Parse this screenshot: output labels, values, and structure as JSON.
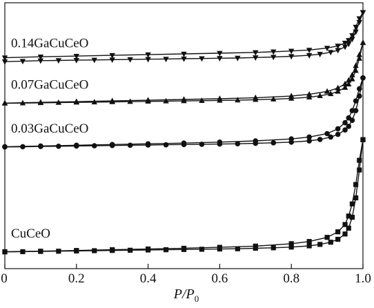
{
  "chart_data": {
    "type": "line",
    "xlabel": "P/P0",
    "xlabel_main": "P/P",
    "xlabel_sub": "0",
    "ylabel": "",
    "xlim": [
      0,
      1.0
    ],
    "ylim": [
      0,
      10
    ],
    "x_ticks": [
      "0",
      "0.2",
      "0.4",
      "0.6",
      "0.8",
      "1.0"
    ],
    "x_tick_values": [
      0,
      0.2,
      0.4,
      0.6,
      0.8,
      1.0
    ],
    "y_ticks_shown": false,
    "grid": false,
    "legend": "none (series labeled inline above each curve)",
    "color": "#111111",
    "series": [
      {
        "name": "0.14GaCuCeO",
        "marker": "triangle-down",
        "adsorption": [
          [
            0.0,
            7.97
          ],
          [
            0.05,
            7.99
          ],
          [
            0.1,
            8.01
          ],
          [
            0.15,
            8.02
          ],
          [
            0.2,
            8.03
          ],
          [
            0.25,
            8.04
          ],
          [
            0.3,
            8.05
          ],
          [
            0.35,
            8.06
          ],
          [
            0.4,
            8.07
          ],
          [
            0.45,
            8.08
          ],
          [
            0.5,
            8.09
          ],
          [
            0.55,
            8.1
          ],
          [
            0.6,
            8.11
          ],
          [
            0.65,
            8.12
          ],
          [
            0.7,
            8.14
          ],
          [
            0.75,
            8.16
          ],
          [
            0.8,
            8.19
          ],
          [
            0.85,
            8.23
          ],
          [
            0.88,
            8.28
          ],
          [
            0.91,
            8.36
          ],
          [
            0.93,
            8.44
          ],
          [
            0.95,
            8.58
          ],
          [
            0.96,
            8.7
          ],
          [
            0.97,
            8.9
          ],
          [
            0.98,
            9.2
          ],
          [
            0.99,
            9.6
          ],
          [
            1.0,
            10.0
          ]
        ],
        "desorption": [
          [
            1.0,
            10.0
          ],
          [
            0.99,
            9.75
          ],
          [
            0.98,
            9.4
          ],
          [
            0.97,
            9.05
          ],
          [
            0.96,
            8.85
          ],
          [
            0.95,
            8.74
          ],
          [
            0.93,
            8.62
          ],
          [
            0.9,
            8.53
          ],
          [
            0.85,
            8.45
          ],
          [
            0.8,
            8.41
          ],
          [
            0.75,
            8.38
          ],
          [
            0.7,
            8.35
          ],
          [
            0.6,
            8.32
          ],
          [
            0.5,
            8.29
          ],
          [
            0.4,
            8.26
          ],
          [
            0.3,
            8.23
          ],
          [
            0.2,
            8.2
          ],
          [
            0.1,
            8.17
          ],
          [
            0.0,
            8.13
          ]
        ]
      },
      {
        "name": "0.07GaCuCeO",
        "marker": "triangle-up",
        "adsorption": [
          [
            0.0,
            6.25
          ],
          [
            0.05,
            6.26
          ],
          [
            0.1,
            6.27
          ],
          [
            0.15,
            6.28
          ],
          [
            0.2,
            6.29
          ],
          [
            0.25,
            6.3
          ],
          [
            0.3,
            6.31
          ],
          [
            0.35,
            6.32
          ],
          [
            0.4,
            6.33
          ],
          [
            0.45,
            6.34
          ],
          [
            0.5,
            6.35
          ],
          [
            0.55,
            6.36
          ],
          [
            0.6,
            6.37
          ],
          [
            0.65,
            6.38
          ],
          [
            0.7,
            6.4
          ],
          [
            0.75,
            6.42
          ],
          [
            0.8,
            6.45
          ],
          [
            0.85,
            6.5
          ],
          [
            0.88,
            6.56
          ],
          [
            0.91,
            6.64
          ],
          [
            0.93,
            6.74
          ],
          [
            0.95,
            6.9
          ],
          [
            0.96,
            7.04
          ],
          [
            0.97,
            7.25
          ],
          [
            0.98,
            7.6
          ],
          [
            0.99,
            8.1
          ],
          [
            1.0,
            8.75
          ]
        ],
        "desorption": [
          [
            1.0,
            8.75
          ],
          [
            0.99,
            8.25
          ],
          [
            0.98,
            7.8
          ],
          [
            0.97,
            7.42
          ],
          [
            0.96,
            7.2
          ],
          [
            0.95,
            7.05
          ],
          [
            0.93,
            6.88
          ],
          [
            0.9,
            6.74
          ],
          [
            0.85,
            6.62
          ],
          [
            0.8,
            6.55
          ],
          [
            0.7,
            6.48
          ],
          [
            0.6,
            6.44
          ],
          [
            0.5,
            6.41
          ],
          [
            0.4,
            6.38
          ],
          [
            0.3,
            6.35
          ],
          [
            0.2,
            6.32
          ],
          [
            0.1,
            6.29
          ],
          [
            0.0,
            6.26
          ]
        ]
      },
      {
        "name": "0.03GaCuCeO",
        "marker": "circle",
        "adsorption": [
          [
            0.0,
            4.45
          ],
          [
            0.05,
            4.46
          ],
          [
            0.1,
            4.47
          ],
          [
            0.15,
            4.48
          ],
          [
            0.2,
            4.49
          ],
          [
            0.25,
            4.5
          ],
          [
            0.3,
            4.51
          ],
          [
            0.35,
            4.52
          ],
          [
            0.4,
            4.53
          ],
          [
            0.45,
            4.54
          ],
          [
            0.5,
            4.55
          ],
          [
            0.55,
            4.56
          ],
          [
            0.6,
            4.57
          ],
          [
            0.65,
            4.58
          ],
          [
            0.7,
            4.6
          ],
          [
            0.75,
            4.62
          ],
          [
            0.8,
            4.65
          ],
          [
            0.85,
            4.7
          ],
          [
            0.88,
            4.76
          ],
          [
            0.91,
            4.86
          ],
          [
            0.93,
            4.97
          ],
          [
            0.95,
            5.15
          ],
          [
            0.96,
            5.3
          ],
          [
            0.97,
            5.55
          ],
          [
            0.98,
            5.95
          ],
          [
            0.99,
            6.55
          ],
          [
            1.0,
            7.3
          ]
        ],
        "desorption": [
          [
            1.0,
            7.3
          ],
          [
            0.99,
            6.85
          ],
          [
            0.98,
            6.35
          ],
          [
            0.97,
            5.95
          ],
          [
            0.96,
            5.65
          ],
          [
            0.95,
            5.45
          ],
          [
            0.93,
            5.2
          ],
          [
            0.9,
            5.0
          ],
          [
            0.85,
            4.86
          ],
          [
            0.8,
            4.78
          ],
          [
            0.7,
            4.7
          ],
          [
            0.6,
            4.65
          ],
          [
            0.5,
            4.61
          ],
          [
            0.4,
            4.58
          ],
          [
            0.3,
            4.55
          ],
          [
            0.2,
            4.52
          ],
          [
            0.1,
            4.49
          ],
          [
            0.0,
            4.46
          ]
        ]
      },
      {
        "name": "CuCeO",
        "marker": "square",
        "adsorption": [
          [
            0.0,
            0.12
          ],
          [
            0.05,
            0.13
          ],
          [
            0.1,
            0.14
          ],
          [
            0.15,
            0.15
          ],
          [
            0.2,
            0.16
          ],
          [
            0.25,
            0.17
          ],
          [
            0.3,
            0.18
          ],
          [
            0.35,
            0.19
          ],
          [
            0.4,
            0.2
          ],
          [
            0.45,
            0.21
          ],
          [
            0.5,
            0.22
          ],
          [
            0.55,
            0.23
          ],
          [
            0.6,
            0.24
          ],
          [
            0.65,
            0.25
          ],
          [
            0.7,
            0.27
          ],
          [
            0.75,
            0.29
          ],
          [
            0.8,
            0.32
          ],
          [
            0.85,
            0.37
          ],
          [
            0.88,
            0.43
          ],
          [
            0.91,
            0.52
          ],
          [
            0.93,
            0.64
          ],
          [
            0.95,
            0.86
          ],
          [
            0.96,
            1.1
          ],
          [
            0.97,
            1.55
          ],
          [
            0.98,
            2.35
          ],
          [
            0.99,
            3.5
          ],
          [
            1.0,
            4.75
          ]
        ],
        "desorption": [
          [
            1.0,
            4.75
          ],
          [
            0.99,
            3.9
          ],
          [
            0.98,
            2.9
          ],
          [
            0.97,
            2.1
          ],
          [
            0.96,
            1.6
          ],
          [
            0.95,
            1.25
          ],
          [
            0.93,
            0.95
          ],
          [
            0.9,
            0.72
          ],
          [
            0.85,
            0.55
          ],
          [
            0.8,
            0.46
          ],
          [
            0.7,
            0.36
          ],
          [
            0.6,
            0.31
          ],
          [
            0.5,
            0.27
          ],
          [
            0.4,
            0.24
          ],
          [
            0.3,
            0.21
          ],
          [
            0.2,
            0.18
          ],
          [
            0.1,
            0.15
          ],
          [
            0.0,
            0.13
          ]
        ]
      }
    ]
  }
}
